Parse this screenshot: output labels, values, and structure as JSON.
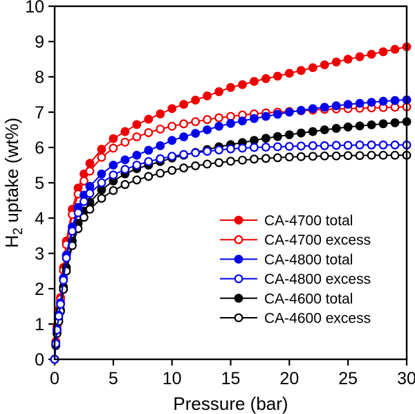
{
  "figure": {
    "background": "#ffffff",
    "frame_color": "#000000"
  },
  "chart_data": {
    "type": "line",
    "title": "",
    "xlabel": "Pressure (bar)",
    "ylabel": "H₂ uptake (wt%)",
    "ylabel_parts": {
      "main": "H",
      "sub": "2",
      "rest": " uptake (wt%)"
    },
    "xlim": [
      0,
      30
    ],
    "ylim": [
      0,
      10
    ],
    "x_ticks": [
      0,
      5,
      10,
      15,
      20,
      25,
      30
    ],
    "y_ticks": [
      0,
      1,
      2,
      3,
      4,
      5,
      6,
      7,
      8,
      9,
      10
    ],
    "grid": false,
    "legend_position": "inside-lower-right",
    "x": [
      0,
      0.1,
      0.2,
      0.35,
      0.5,
      0.75,
      1,
      1.5,
      2,
      2.5,
      3,
      4,
      5,
      6,
      7,
      8,
      9,
      10,
      11,
      12,
      13,
      14,
      15,
      16,
      17,
      18,
      19,
      20,
      21,
      22,
      23,
      24,
      25,
      26,
      27,
      28,
      29,
      30
    ],
    "series": [
      {
        "name": "CA-4700 total",
        "color": "#ee0000",
        "marker": "filled-circle",
        "values": [
          0,
          0.5,
          0.95,
          1.4,
          1.75,
          2.6,
          3.35,
          4.25,
          4.85,
          5.25,
          5.55,
          5.95,
          6.25,
          6.45,
          6.65,
          6.8,
          6.95,
          7.1,
          7.22,
          7.34,
          7.46,
          7.58,
          7.7,
          7.78,
          7.87,
          7.95,
          8.02,
          8.1,
          8.18,
          8.26,
          8.34,
          8.42,
          8.5,
          8.57,
          8.64,
          8.71,
          8.78,
          8.85
        ]
      },
      {
        "name": "CA-4700 excess",
        "color": "#ee0000",
        "marker": "open-circle",
        "values": [
          0,
          0.5,
          0.93,
          1.37,
          1.7,
          2.52,
          3.25,
          4.1,
          4.68,
          5.05,
          5.33,
          5.72,
          5.98,
          6.15,
          6.3,
          6.42,
          6.52,
          6.6,
          6.67,
          6.73,
          6.79,
          6.84,
          6.88,
          6.92,
          6.95,
          6.98,
          7.0,
          7.02,
          7.04,
          7.06,
          7.08,
          7.09,
          7.1,
          7.11,
          7.12,
          7.13,
          7.14,
          7.15
        ]
      },
      {
        "name": "CA-4800 total",
        "color": "#0000ee",
        "marker": "filled-circle",
        "values": [
          0,
          0.45,
          0.85,
          1.25,
          1.6,
          2.3,
          2.95,
          3.75,
          4.3,
          4.65,
          4.9,
          5.25,
          5.5,
          5.65,
          5.78,
          5.92,
          6.05,
          6.2,
          6.3,
          6.4,
          6.5,
          6.6,
          6.68,
          6.75,
          6.82,
          6.88,
          6.94,
          7.0,
          7.05,
          7.1,
          7.14,
          7.18,
          7.22,
          7.25,
          7.28,
          7.31,
          7.33,
          7.35
        ]
      },
      {
        "name": "CA-4800 excess",
        "color": "#0000ee",
        "marker": "open-circle",
        "values": [
          0,
          0.44,
          0.83,
          1.22,
          1.56,
          2.24,
          2.87,
          3.63,
          4.15,
          4.47,
          4.7,
          5.0,
          5.22,
          5.38,
          5.5,
          5.6,
          5.68,
          5.75,
          5.8,
          5.85,
          5.89,
          5.93,
          5.96,
          5.98,
          6.0,
          6.01,
          6.02,
          6.03,
          6.04,
          6.05,
          6.05,
          6.06,
          6.06,
          6.07,
          6.07,
          6.07,
          6.07,
          6.07
        ]
      },
      {
        "name": "CA-4600 total",
        "color": "#000000",
        "marker": "filled-circle",
        "values": [
          0,
          0.4,
          0.75,
          1.1,
          1.4,
          2.05,
          2.6,
          3.35,
          3.85,
          4.2,
          4.45,
          4.8,
          5.05,
          5.25,
          5.4,
          5.5,
          5.6,
          5.7,
          5.78,
          5.86,
          5.94,
          6.02,
          6.08,
          6.14,
          6.2,
          6.26,
          6.31,
          6.36,
          6.41,
          6.45,
          6.5,
          6.54,
          6.58,
          6.61,
          6.64,
          6.67,
          6.7,
          6.73
        ]
      },
      {
        "name": "CA-4600 excess",
        "color": "#000000",
        "marker": "open-circle",
        "values": [
          0,
          0.39,
          0.73,
          1.07,
          1.36,
          1.98,
          2.5,
          3.22,
          3.7,
          4.02,
          4.25,
          4.56,
          4.78,
          4.95,
          5.08,
          5.18,
          5.27,
          5.35,
          5.42,
          5.48,
          5.53,
          5.57,
          5.61,
          5.64,
          5.67,
          5.69,
          5.71,
          5.73,
          5.74,
          5.75,
          5.76,
          5.76,
          5.77,
          5.77,
          5.78,
          5.78,
          5.78,
          5.78
        ]
      }
    ],
    "draw_order": [
      0,
      1,
      4,
      5,
      2,
      3
    ],
    "legend": [
      {
        "label": "CA-4700 total",
        "series_index": 0
      },
      {
        "label": "CA-4700 excess",
        "series_index": 1
      },
      {
        "label": "CA-4800 total",
        "series_index": 2
      },
      {
        "label": "CA-4800 excess",
        "series_index": 3
      },
      {
        "label": "CA-4600 total",
        "series_index": 4
      },
      {
        "label": "CA-4600 excess",
        "series_index": 5
      }
    ]
  }
}
